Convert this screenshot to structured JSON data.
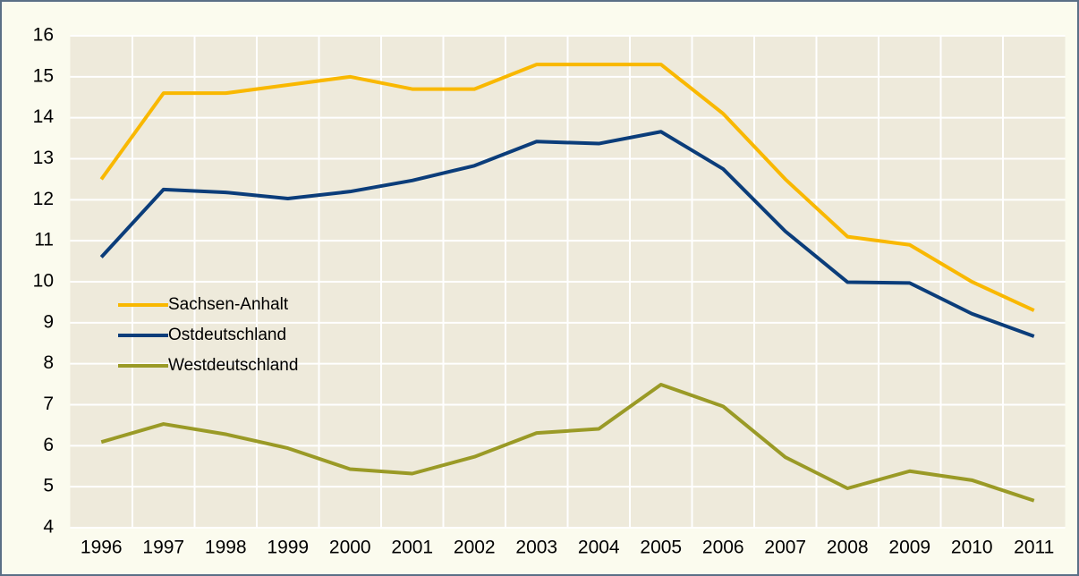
{
  "chart_data": {
    "type": "line",
    "categories": [
      "1996",
      "1997",
      "1998",
      "1999",
      "2000",
      "2001",
      "2002",
      "2003",
      "2004",
      "2005",
      "2006",
      "2007",
      "2008",
      "2009",
      "2010",
      "2011"
    ],
    "series": [
      {
        "name": "Sachsen-Anhalt",
        "color": "#f9b800",
        "values": [
          12.5,
          14.6,
          14.6,
          14.8,
          15.0,
          14.7,
          14.7,
          15.3,
          15.3,
          15.3,
          14.1,
          12.5,
          11.1,
          10.9,
          10.0,
          9.3
        ]
      },
      {
        "name": "Ostdeutschland",
        "color": "#0b3d7a",
        "values": [
          10.6,
          12.25,
          12.18,
          12.03,
          12.2,
          12.47,
          12.83,
          13.42,
          13.37,
          13.66,
          12.75,
          11.23,
          9.99,
          9.97,
          9.22,
          8.67
        ]
      },
      {
        "name": "Westdeutschland",
        "color": "#9a9a26",
        "values": [
          6.09,
          6.53,
          6.28,
          5.94,
          5.43,
          5.32,
          5.73,
          6.31,
          6.41,
          7.49,
          6.96,
          5.72,
          4.96,
          5.38,
          5.16,
          4.66
        ]
      }
    ],
    "ylim": [
      4,
      16
    ],
    "yticks": [
      4,
      5,
      6,
      7,
      8,
      9,
      10,
      11,
      12,
      13,
      14,
      15,
      16
    ],
    "grid": true,
    "legend_position": "center-left"
  }
}
